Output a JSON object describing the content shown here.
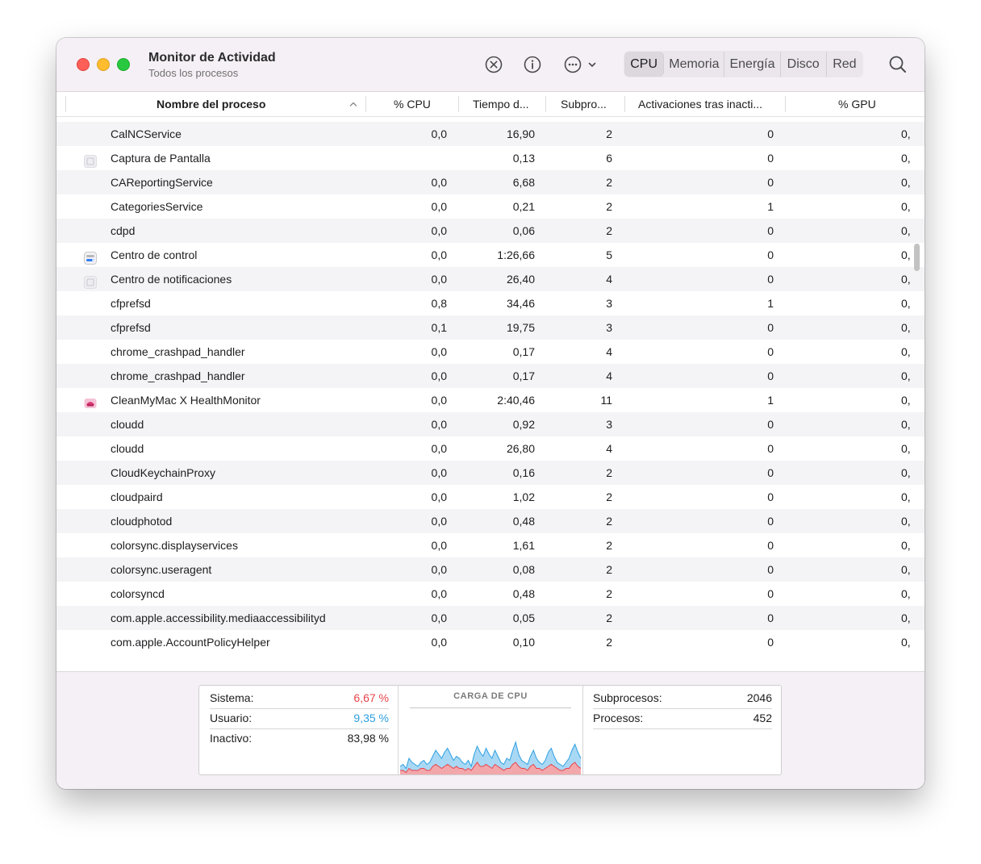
{
  "window": {
    "title": "Monitor de Actividad",
    "subtitle": "Todos los procesos"
  },
  "toolbar": {
    "icons": [
      "stop-process-icon",
      "info-icon",
      "more-options-icon",
      "chevron-down-icon",
      "search-icon"
    ],
    "tabs": [
      {
        "label": "CPU",
        "active": true
      },
      {
        "label": "Memoria",
        "active": false
      },
      {
        "label": "Energía",
        "active": false
      },
      {
        "label": "Disco",
        "active": false
      },
      {
        "label": "Red",
        "active": false
      }
    ]
  },
  "table": {
    "headers": {
      "name": "Nombre del proceso",
      "cpu": "% CPU",
      "time": "Tiempo d...",
      "threads": "Subpro...",
      "wakes": "Activaciones tras inacti...",
      "gpu": "% GPU"
    },
    "rows": [
      {
        "name": "CalNCService",
        "cpu": "0,0",
        "time": "16,90",
        "threads": "2",
        "wakes": "0",
        "gpu": "0,",
        "icon": ""
      },
      {
        "name": "Captura de Pantalla",
        "cpu": "",
        "time": "0,13",
        "threads": "6",
        "wakes": "0",
        "gpu": "0,",
        "icon": "screenshot-app-icon"
      },
      {
        "name": "CAReportingService",
        "cpu": "0,0",
        "time": "6,68",
        "threads": "2",
        "wakes": "0",
        "gpu": "0,",
        "icon": ""
      },
      {
        "name": "CategoriesService",
        "cpu": "0,0",
        "time": "0,21",
        "threads": "2",
        "wakes": "1",
        "gpu": "0,",
        "icon": ""
      },
      {
        "name": "cdpd",
        "cpu": "0,0",
        "time": "0,06",
        "threads": "2",
        "wakes": "0",
        "gpu": "0,",
        "icon": ""
      },
      {
        "name": "Centro de control",
        "cpu": "0,0",
        "time": "1:26,66",
        "threads": "5",
        "wakes": "0",
        "gpu": "0,",
        "icon": "control-center-app-icon"
      },
      {
        "name": "Centro de notificaciones",
        "cpu": "0,0",
        "time": "26,40",
        "threads": "4",
        "wakes": "0",
        "gpu": "0,",
        "icon": "notification-center-app-icon"
      },
      {
        "name": "cfprefsd",
        "cpu": "0,8",
        "time": "34,46",
        "threads": "3",
        "wakes": "1",
        "gpu": "0,",
        "icon": ""
      },
      {
        "name": "cfprefsd",
        "cpu": "0,1",
        "time": "19,75",
        "threads": "3",
        "wakes": "0",
        "gpu": "0,",
        "icon": ""
      },
      {
        "name": "chrome_crashpad_handler",
        "cpu": "0,0",
        "time": "0,17",
        "threads": "4",
        "wakes": "0",
        "gpu": "0,",
        "icon": ""
      },
      {
        "name": "chrome_crashpad_handler",
        "cpu": "0,0",
        "time": "0,17",
        "threads": "4",
        "wakes": "0",
        "gpu": "0,",
        "icon": ""
      },
      {
        "name": "CleanMyMac X HealthMonitor",
        "cpu": "0,0",
        "time": "2:40,46",
        "threads": "11",
        "wakes": "1",
        "gpu": "0,",
        "icon": "cleanmymac-app-icon"
      },
      {
        "name": "cloudd",
        "cpu": "0,0",
        "time": "0,92",
        "threads": "3",
        "wakes": "0",
        "gpu": "0,",
        "icon": ""
      },
      {
        "name": "cloudd",
        "cpu": "0,0",
        "time": "26,80",
        "threads": "4",
        "wakes": "0",
        "gpu": "0,",
        "icon": ""
      },
      {
        "name": "CloudKeychainProxy",
        "cpu": "0,0",
        "time": "0,16",
        "threads": "2",
        "wakes": "0",
        "gpu": "0,",
        "icon": ""
      },
      {
        "name": "cloudpaird",
        "cpu": "0,0",
        "time": "1,02",
        "threads": "2",
        "wakes": "0",
        "gpu": "0,",
        "icon": ""
      },
      {
        "name": "cloudphotod",
        "cpu": "0,0",
        "time": "0,48",
        "threads": "2",
        "wakes": "0",
        "gpu": "0,",
        "icon": ""
      },
      {
        "name": "colorsync.displayservices",
        "cpu": "0,0",
        "time": "1,61",
        "threads": "2",
        "wakes": "0",
        "gpu": "0,",
        "icon": ""
      },
      {
        "name": "colorsync.useragent",
        "cpu": "0,0",
        "time": "0,08",
        "threads": "2",
        "wakes": "0",
        "gpu": "0,",
        "icon": ""
      },
      {
        "name": "colorsyncd",
        "cpu": "0,0",
        "time": "0,48",
        "threads": "2",
        "wakes": "0",
        "gpu": "0,",
        "icon": ""
      },
      {
        "name": "com.apple.accessibility.mediaaccessibilityd",
        "cpu": "0,0",
        "time": "0,05",
        "threads": "2",
        "wakes": "0",
        "gpu": "0,",
        "icon": ""
      },
      {
        "name": "com.apple.AccountPolicyHelper",
        "cpu": "0,0",
        "time": "0,10",
        "threads": "2",
        "wakes": "0",
        "gpu": "0,",
        "icon": ""
      }
    ]
  },
  "summary": {
    "system": {
      "label": "Sistema:",
      "value": "6,67 %"
    },
    "user": {
      "label": "Usuario:",
      "value": "9,35 %"
    },
    "idle": {
      "label": "Inactivo:",
      "value": "83,98 %"
    },
    "chart_title": "CARGA DE CPU",
    "threads": {
      "label": "Subprocesos:",
      "value": "2046"
    },
    "processes": {
      "label": "Procesos:",
      "value": "452"
    }
  },
  "colors": {
    "system": "#e8434a",
    "user": "#2d9fe0",
    "user_fill": "#a9d8f5",
    "system_fill": "#f2a7ab"
  },
  "cpu_history": {
    "user": [
      4,
      5,
      3,
      8,
      6,
      5,
      4,
      6,
      7,
      5,
      6,
      9,
      12,
      10,
      8,
      11,
      13,
      10,
      7,
      9,
      8,
      6,
      5,
      7,
      4,
      10,
      14,
      11,
      9,
      13,
      10,
      8,
      12,
      9,
      6,
      5,
      8,
      7,
      12,
      16,
      10,
      7,
      6,
      5,
      9,
      12,
      8,
      6,
      5,
      7,
      11,
      13,
      9,
      6,
      5,
      4,
      6,
      8,
      12,
      15,
      11,
      8
    ],
    "system": [
      2,
      2,
      1,
      3,
      2,
      2,
      2,
      3,
      3,
      2,
      2,
      4,
      5,
      4,
      3,
      4,
      5,
      4,
      3,
      4,
      3,
      3,
      2,
      3,
      2,
      4,
      6,
      4,
      4,
      5,
      4,
      3,
      5,
      4,
      3,
      2,
      3,
      3,
      5,
      6,
      4,
      3,
      3,
      2,
      4,
      5,
      3,
      3,
      2,
      3,
      4,
      5,
      4,
      3,
      2,
      2,
      3,
      3,
      5,
      6,
      4,
      3
    ]
  }
}
